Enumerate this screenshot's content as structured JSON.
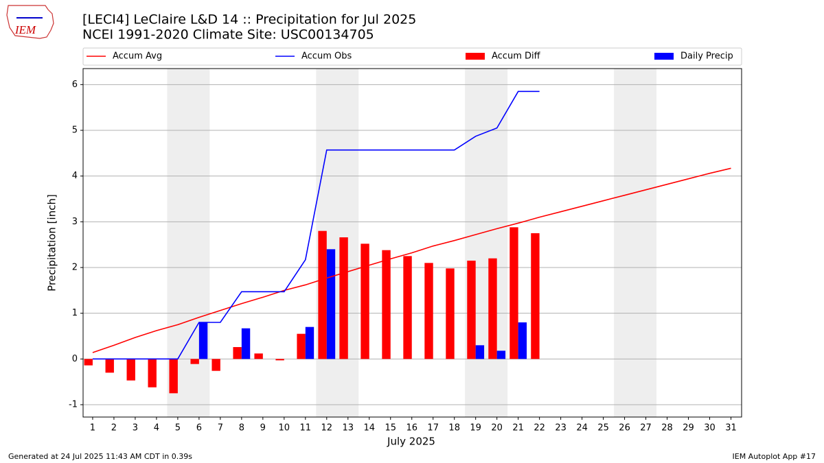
{
  "logo_text": "IEM",
  "chart_data": {
    "type": "bar-line",
    "title": "[LECI4] LeClaire L&D 14 :: Precipitation for Jul 2025",
    "subtitle": "NCEI 1991-2020 Climate Site: USC00134705",
    "xlabel": "July 2025",
    "ylabel": "Precipitation [inch]",
    "x": [
      1,
      2,
      3,
      4,
      5,
      6,
      7,
      8,
      9,
      10,
      11,
      12,
      13,
      14,
      15,
      16,
      17,
      18,
      19,
      20,
      21,
      22,
      23,
      24,
      25,
      26,
      27,
      28,
      29,
      30,
      31
    ],
    "series": [
      {
        "name": "Accum Avg",
        "kind": "line",
        "color": "#ff0000",
        "values": [
          0.14,
          0.3,
          0.47,
          0.62,
          0.75,
          0.91,
          1.06,
          1.21,
          1.35,
          1.5,
          1.62,
          1.77,
          1.91,
          2.05,
          2.19,
          2.32,
          2.47,
          2.59,
          2.72,
          2.85,
          2.97,
          3.1,
          3.22,
          3.34,
          3.46,
          3.58,
          3.7,
          3.82,
          3.94,
          4.06,
          4.17
        ]
      },
      {
        "name": "Accum Obs",
        "kind": "line",
        "color": "#0000ff",
        "values": [
          0,
          0,
          0,
          0,
          0,
          0.8,
          0.8,
          1.47,
          1.47,
          1.47,
          2.17,
          4.57,
          4.57,
          4.57,
          4.57,
          4.57,
          4.57,
          4.57,
          4.87,
          5.05,
          5.85,
          5.85,
          null,
          null,
          null,
          null,
          null,
          null,
          null,
          null,
          null
        ]
      },
      {
        "name": "Accum Diff",
        "kind": "bar",
        "offset": -0.2,
        "color": "#ff0000",
        "values": [
          -0.14,
          -0.3,
          -0.47,
          -0.62,
          -0.75,
          -0.11,
          -0.26,
          0.26,
          0.12,
          -0.03,
          0.55,
          2.8,
          2.66,
          2.52,
          2.38,
          2.25,
          2.1,
          1.98,
          2.15,
          2.2,
          2.88,
          2.75,
          null,
          null,
          null,
          null,
          null,
          null,
          null,
          null,
          null
        ]
      },
      {
        "name": "Daily Precip",
        "kind": "bar",
        "offset": 0.2,
        "color": "#0000ff",
        "values": [
          0,
          0,
          0,
          0,
          0,
          0.8,
          0,
          0.67,
          0,
          0,
          0.7,
          2.4,
          0,
          0,
          0,
          0,
          0,
          0,
          0.3,
          0.18,
          0.8,
          0,
          null,
          null,
          null,
          null,
          null,
          null,
          null,
          null,
          null
        ]
      }
    ],
    "bar_width": 0.4,
    "weekend_spans": [
      [
        4.5,
        6.5
      ],
      [
        11.5,
        13.5
      ],
      [
        18.5,
        20.5
      ],
      [
        25.5,
        27.5
      ]
    ],
    "xlim": [
      0.55,
      31.5
    ],
    "ylim": [
      -1.27,
      6.35
    ],
    "xticks": [
      1,
      2,
      3,
      4,
      5,
      6,
      7,
      8,
      9,
      10,
      11,
      12,
      13,
      14,
      15,
      16,
      17,
      18,
      19,
      20,
      21,
      22,
      23,
      24,
      25,
      26,
      27,
      28,
      29,
      30,
      31
    ],
    "yticks": [
      -1,
      0,
      1,
      2,
      3,
      4,
      5,
      6
    ],
    "grid": true,
    "legend": "top",
    "footer_left": "Generated at 24 Jul 2025 11:43 AM CDT in 0.39s",
    "footer_right": "IEM Autoplot App #17"
  }
}
